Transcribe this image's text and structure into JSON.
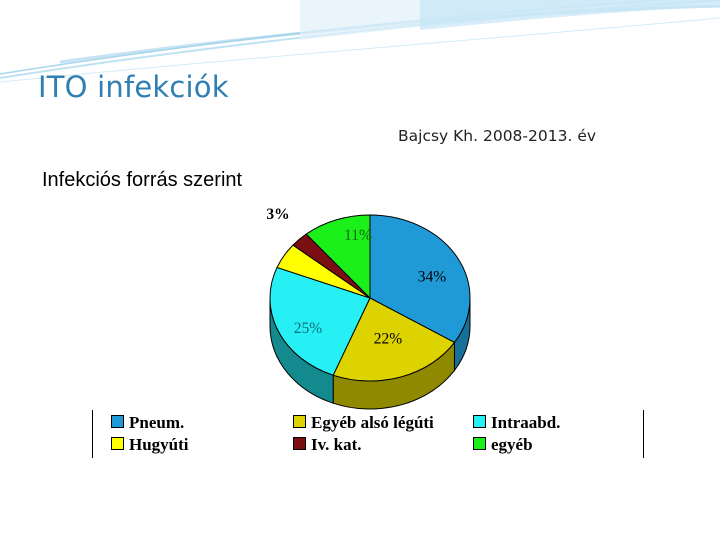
{
  "slide": {
    "title": "ITO infekciók",
    "subtitle": "Bajcsy Kh. 2008-2013. év"
  },
  "colors": {
    "title": "#2f7fb3",
    "decoration": "#9fd0ea"
  },
  "chart_data": {
    "type": "pie",
    "title": "Infekciós forrás szerint",
    "style": "3d",
    "legend_position": "bottom",
    "slices": [
      {
        "name": "Pneum.",
        "value": 34,
        "label": "34%",
        "color": "#1f9ad6",
        "side": "#177099"
      },
      {
        "name": "Egyéb alsó légúti",
        "value": 22,
        "label": "22%",
        "color": "#dcd300",
        "side": "#8f8900"
      },
      {
        "name": "Intraabd.",
        "value": 25,
        "label": "25%",
        "color": "#27f0f5",
        "side": "#138a8e"
      },
      {
        "name": "Hugyúti",
        "value": 5,
        "label": "",
        "color": "#ffff00",
        "side": "#a6a600"
      },
      {
        "name": "Iv. kat.",
        "value": 3,
        "label": "3%",
        "color": "#7a0e12",
        "side": "#4a080a"
      },
      {
        "name": "egyéb",
        "value": 11,
        "label": "11%",
        "color": "#1bf01b",
        "side": "#0e8a0e"
      }
    ],
    "legend_order": [
      "Pneum.",
      "Egyéb alsó légúti",
      "Intraabd.",
      "Hugyúti",
      "Iv. kat.",
      "egyéb"
    ]
  }
}
